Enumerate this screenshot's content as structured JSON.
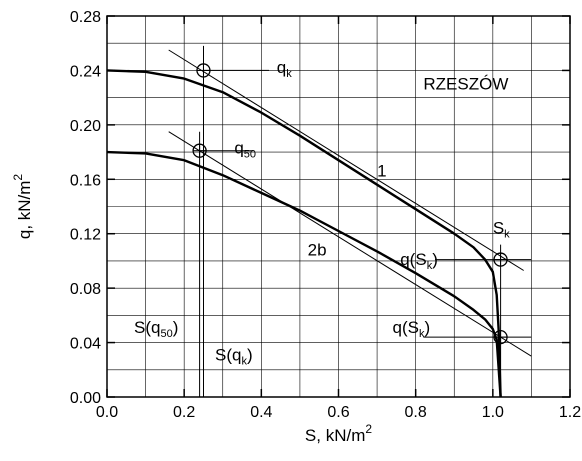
{
  "chart_data": {
    "type": "line",
    "title": "",
    "xlabel": "S, kN/m",
    "xlabel_sup": "2",
    "ylabel": "q, kN/m",
    "ylabel_sup": "2",
    "xlim": [
      0.0,
      1.2
    ],
    "ylim": [
      0.0,
      0.28
    ],
    "x_ticks": [
      "0.0",
      "0.2",
      "0.4",
      "0.6",
      "0.8",
      "1.0",
      "1.2"
    ],
    "y_ticks": [
      "0.00",
      "0.04",
      "0.08",
      "0.12",
      "0.16",
      "0.20",
      "0.24",
      "0.28"
    ],
    "grid": true,
    "grid_x_step": 0.1,
    "grid_y_step": 0.02,
    "series": [
      {
        "name": "1",
        "style": "thick",
        "x": [
          0.0,
          0.1,
          0.2,
          0.3,
          0.4,
          0.5,
          0.6,
          0.7,
          0.8,
          0.9,
          0.95,
          0.98,
          1.0,
          1.01,
          1.015,
          1.02
        ],
        "y": [
          0.24,
          0.239,
          0.234,
          0.224,
          0.209,
          0.192,
          0.174,
          0.156,
          0.138,
          0.12,
          0.11,
          0.101,
          0.092,
          0.075,
          0.05,
          0.0
        ]
      },
      {
        "name": "2b",
        "style": "thick",
        "x": [
          0.0,
          0.1,
          0.2,
          0.3,
          0.4,
          0.5,
          0.6,
          0.7,
          0.8,
          0.9,
          0.95,
          0.98,
          1.0,
          1.01,
          1.02
        ],
        "y": [
          0.18,
          0.179,
          0.174,
          0.163,
          0.15,
          0.137,
          0.122,
          0.107,
          0.091,
          0.074,
          0.064,
          0.057,
          0.05,
          0.042,
          0.0
        ]
      },
      {
        "name": "",
        "style": "thin",
        "x": [
          0.16,
          1.08
        ],
        "y": [
          0.255,
          0.093
        ]
      },
      {
        "name": "",
        "style": "thin",
        "x": [
          0.16,
          1.1
        ],
        "y": [
          0.195,
          0.03
        ]
      },
      {
        "name": "",
        "style": "thin",
        "x": [
          0.25,
          0.25
        ],
        "y": [
          0.0,
          0.258
        ]
      },
      {
        "name": "",
        "style": "thin",
        "x": [
          0.24,
          0.24
        ],
        "y": [
          0.0,
          0.195
        ]
      },
      {
        "name": "",
        "style": "thin",
        "x": [
          0.25,
          0.42
        ],
        "y": [
          0.24,
          0.24
        ]
      },
      {
        "name": "",
        "style": "thin",
        "x": [
          0.24,
          0.38
        ],
        "y": [
          0.181,
          0.181
        ]
      },
      {
        "name": "",
        "style": "thin",
        "x": [
          1.02,
          1.02
        ],
        "y": [
          0.0,
          0.112
        ]
      },
      {
        "name": "",
        "style": "thin",
        "x": [
          0.85,
          1.1
        ],
        "y": [
          0.101,
          0.101
        ]
      },
      {
        "name": "",
        "style": "thin",
        "x": [
          0.82,
          1.1
        ],
        "y": [
          0.044,
          0.044
        ]
      }
    ],
    "points": [
      {
        "x": 0.25,
        "y": 0.24
      },
      {
        "x": 0.24,
        "y": 0.181
      },
      {
        "x": 1.02,
        "y": 0.101
      },
      {
        "x": 1.02,
        "y": 0.044
      }
    ],
    "annotations": [
      {
        "base": "q",
        "sub": "k",
        "tail": "",
        "x": 0.44,
        "y": 0.238
      },
      {
        "base": "RZESZÓW",
        "sub": "",
        "tail": "",
        "x": 0.82,
        "y": 0.226
      },
      {
        "base": "q",
        "sub": "50",
        "tail": "",
        "x": 0.33,
        "y": 0.179
      },
      {
        "base": "1",
        "sub": "",
        "tail": "",
        "x": 0.7,
        "y": 0.162
      },
      {
        "base": "S",
        "sub": "k",
        "tail": "",
        "x": 1.0,
        "y": 0.12
      },
      {
        "base": "2b",
        "sub": "",
        "tail": "",
        "x": 0.52,
        "y": 0.104
      },
      {
        "base": "q(S",
        "sub": "k",
        "tail": ")",
        "x": 0.76,
        "y": 0.097
      },
      {
        "base": "S(q",
        "sub": "50",
        "tail": ")",
        "x": 0.07,
        "y": 0.047
      },
      {
        "base": "q(S",
        "sub": "k",
        "tail": ")",
        "x": 0.74,
        "y": 0.047
      },
      {
        "base": "S(q",
        "sub": "k",
        "tail": ")",
        "x": 0.28,
        "y": 0.027
      }
    ]
  }
}
